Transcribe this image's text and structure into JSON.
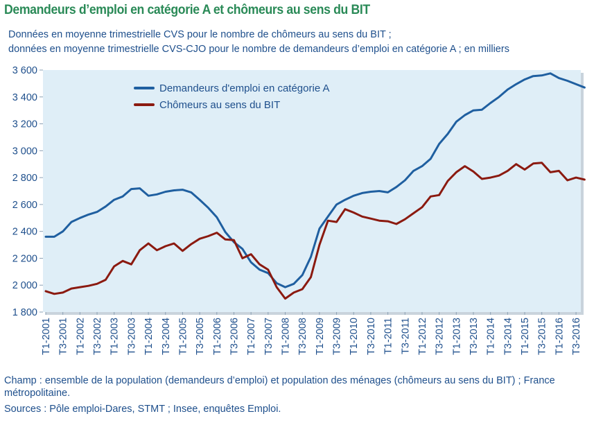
{
  "title": "Demandeurs d’emploi en catégorie A et chômeurs au sens du BIT",
  "subtitle_line1": "Données en moyenne trimestrielle CVS pour le nombre de chômeurs au sens du BIT ;",
  "subtitle_line2": "données en moyenne trimestrielle CVS-CJO pour le nombre de demandeurs d’emploi en catégorie A ; en milliers",
  "footnote_champ": "Champ : ensemble de la population (demandeurs d’emploi) et population des ménages (chômeurs au sens du BIT) ; France métropolitaine.",
  "footnote_sources": "Sources : Pôle emploi-Dares, STMT ; Insee, enquêtes Emploi.",
  "colors": {
    "series_a": "#1f5fa0",
    "series_b": "#8b1a10",
    "plot_bg": "#dfeef7",
    "axis_text": "#1e4f8c",
    "title": "#2a8a57"
  },
  "chart_data": {
    "type": "line",
    "y_tick_labels": [
      "1 800",
      "2 000",
      "2 200",
      "2 400",
      "2 600",
      "2 800",
      "3 000",
      "3 200",
      "3 400",
      "3 600"
    ],
    "y_ticks": [
      1800,
      2000,
      2200,
      2400,
      2600,
      2800,
      3000,
      3200,
      3400,
      3600
    ],
    "ylim": [
      1800,
      3600
    ],
    "grid": false,
    "legend_position": "top-left",
    "x_tick_labels": [
      "T1-2001",
      "T3-2001",
      "T1-2002",
      "T3-2002",
      "T1-2003",
      "T3-2003",
      "T1-2004",
      "T3-2004",
      "T1-2005",
      "T3-2005",
      "T1-2006",
      "T3-2006",
      "T1-2007",
      "T3-2007",
      "T1-2008",
      "T3-2008",
      "T1-2009",
      "T3-2009",
      "T1-2010",
      "T3-2010",
      "T1-2011",
      "T3-2011",
      "T1-2012",
      "T3-2012",
      "T1-2013",
      "T3-2013",
      "T1-2014",
      "T3-2014",
      "T1-2015",
      "T3-2015",
      "T1-2016",
      "T3-2016"
    ],
    "series": [
      {
        "name": "Demandeurs d'emploi en catégorie A",
        "values": [
          2360,
          2360,
          2400,
          2470,
          2500,
          2525,
          2545,
          2585,
          2635,
          2660,
          2715,
          2720,
          2665,
          2675,
          2695,
          2705,
          2710,
          2690,
          2635,
          2575,
          2505,
          2395,
          2320,
          2270,
          2170,
          2115,
          2090,
          2015,
          1985,
          2010,
          2075,
          2210,
          2420,
          2510,
          2600,
          2635,
          2665,
          2685,
          2695,
          2700,
          2690,
          2730,
          2780,
          2850,
          2885,
          2940,
          3050,
          3125,
          3215,
          3265,
          3300,
          3305,
          3355,
          3400,
          3455,
          3495,
          3530,
          3555,
          3560,
          3575,
          3540,
          3520,
          3495,
          3470
        ]
      },
      {
        "name": "Chômeurs au sens du BIT",
        "values": [
          1955,
          1935,
          1945,
          1975,
          1985,
          1995,
          2010,
          2040,
          2140,
          2180,
          2155,
          2260,
          2310,
          2260,
          2290,
          2310,
          2255,
          2305,
          2345,
          2365,
          2390,
          2340,
          2335,
          2200,
          2230,
          2155,
          2115,
          1985,
          1900,
          1945,
          1970,
          2060,
          2300,
          2480,
          2470,
          2565,
          2540,
          2510,
          2495,
          2480,
          2475,
          2455,
          2490,
          2535,
          2580,
          2660,
          2670,
          2775,
          2840,
          2885,
          2845,
          2790,
          2800,
          2815,
          2850,
          2900,
          2860,
          2905,
          2910,
          2840,
          2850,
          2780,
          2800,
          2785
        ]
      }
    ]
  }
}
